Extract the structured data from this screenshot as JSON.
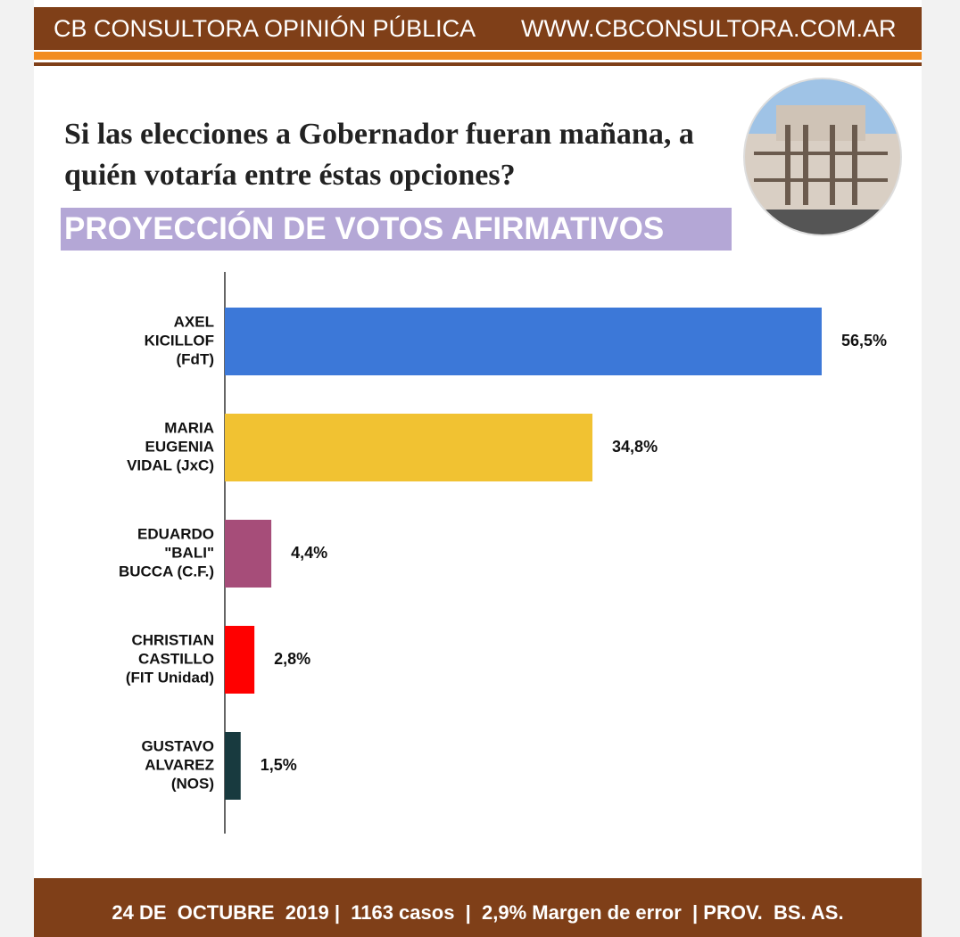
{
  "header": {
    "left": "CB CONSULTORA OPINIÓN PÚBLICA",
    "right": "WWW.CBCONSULTORA.COM.AR"
  },
  "chart_data": {
    "type": "bar",
    "orientation": "horizontal",
    "title": "Si las elecciones a Gobernador fueran mañana, a quién votaría entre éstas opciones?",
    "subtitle": "PROYECCIÓN DE VOTOS AFIRMATIVOS",
    "categories": [
      [
        "AXEL",
        "KICILLOF",
        "(FdT)"
      ],
      [
        "MARIA",
        "EUGENIA",
        "VIDAL (JxC)"
      ],
      [
        "EDUARDO",
        "\"BALI\"",
        "BUCCA (C.F.)"
      ],
      [
        "CHRISTIAN",
        "CASTILLO",
        "(FIT Unidad)"
      ],
      [
        "GUSTAVO",
        "ALVAREZ",
        "(NOS)"
      ]
    ],
    "values": [
      56.5,
      34.8,
      4.4,
      2.8,
      1.5
    ],
    "value_labels": [
      "56,5%",
      "34,8%",
      "4,4%",
      "2,8%",
      "1,5%"
    ],
    "colors": [
      "#3c78d8",
      "#f1c232",
      "#a64d79",
      "#ff0000",
      "#183a3f"
    ]
  },
  "footer": "24 DE  OCTUBRE  2019 |  1163 casos  |  2,9% Margen de error  | PROV.  BS. AS."
}
